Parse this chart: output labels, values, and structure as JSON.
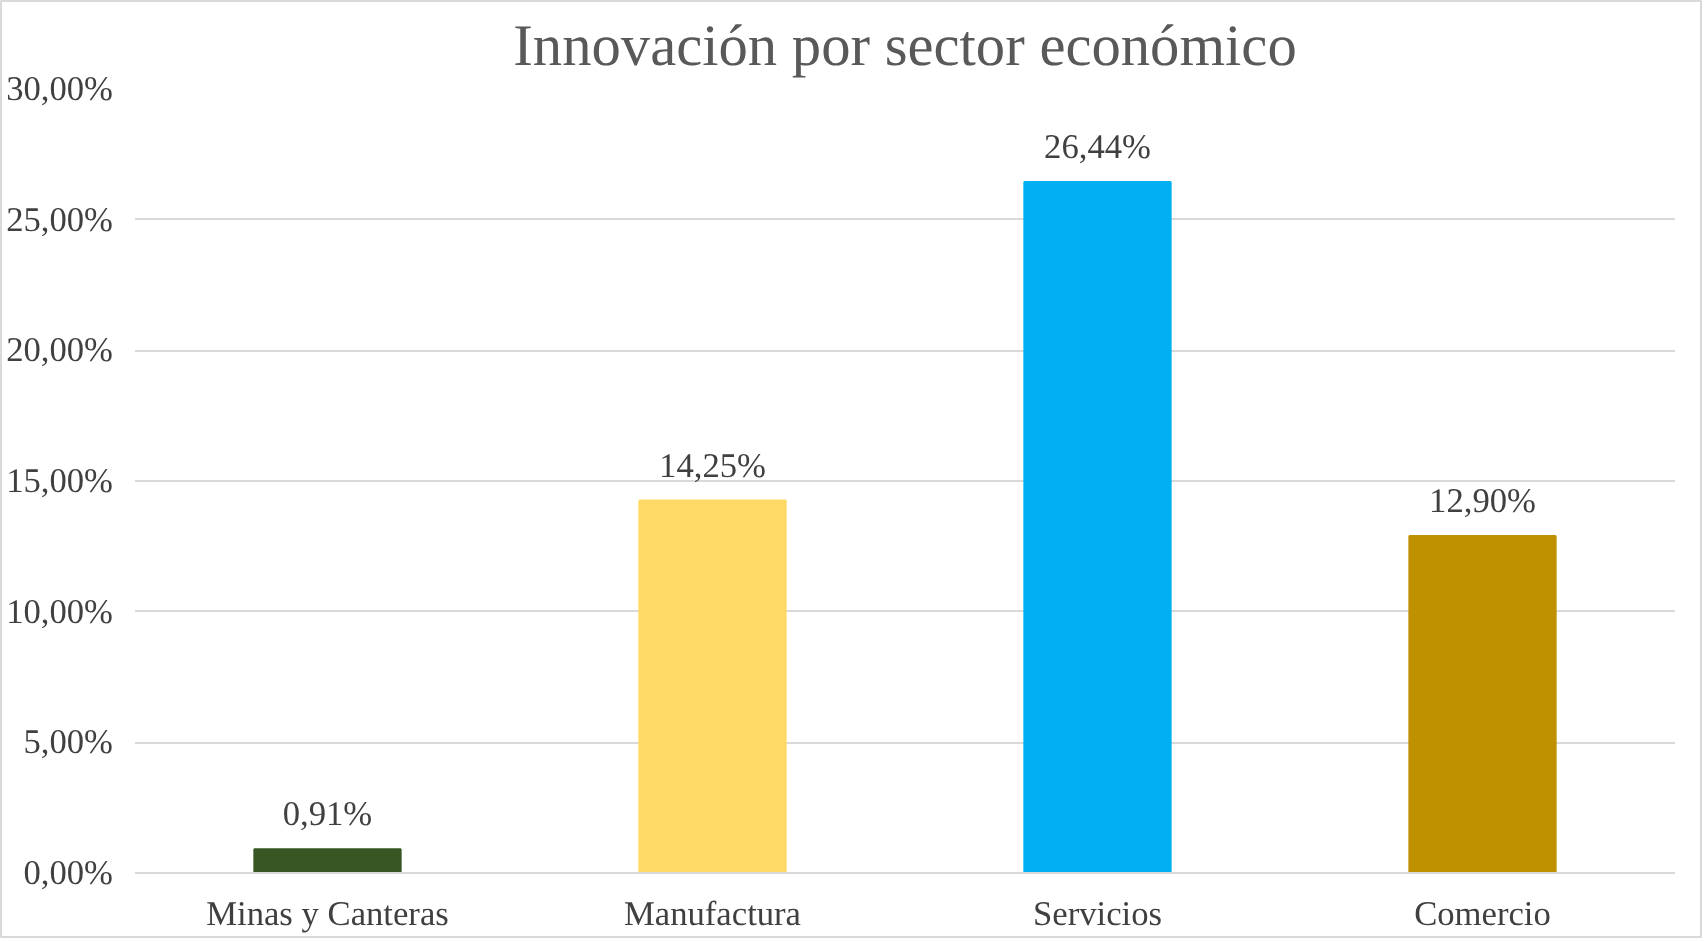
{
  "chart_data": {
    "type": "bar",
    "title": "Innovación por sector económico",
    "categories": [
      "Minas y Canteras",
      "Manufactura",
      "Servicios",
      "Comercio"
    ],
    "values": [
      0.91,
      14.25,
      26.44,
      12.9
    ],
    "colors": [
      "#375623",
      "#ffd966",
      "#00b0f0",
      "#bf9000"
    ],
    "value_labels": [
      "0,91%",
      "14,25%",
      "26,44%",
      "12,90%"
    ],
    "ylim": [
      0,
      30
    ],
    "yticks": [
      {
        "value": 0,
        "label": "0,00%"
      },
      {
        "value": 5,
        "label": "5,00%"
      },
      {
        "value": 10,
        "label": "10,00%"
      },
      {
        "value": 15,
        "label": "15,00%"
      },
      {
        "value": 20,
        "label": "20,00%"
      },
      {
        "value": 25,
        "label": "25,00%"
      },
      {
        "value": 30,
        "label": "30,00%"
      }
    ],
    "grid": "y"
  }
}
